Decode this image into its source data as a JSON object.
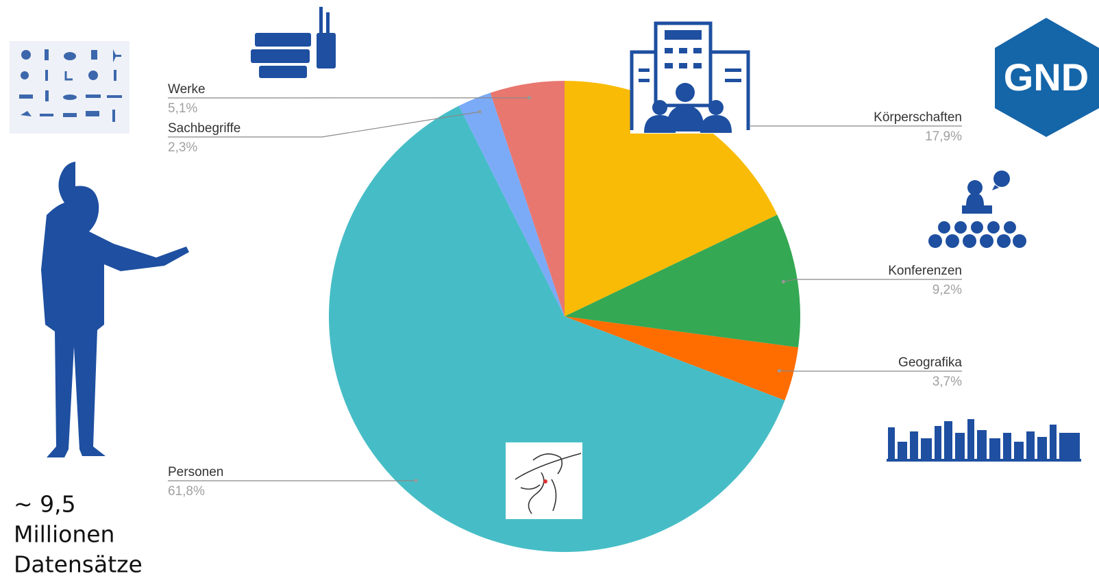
{
  "chart_data": {
    "type": "pie",
    "categories": [
      "Körperschaften",
      "Konferenzen",
      "Geografika",
      "Personen",
      "Sachbegriffe",
      "Werke"
    ],
    "values": [
      17.9,
      9.2,
      3.7,
      61.8,
      2.3,
      5.1
    ],
    "value_labels": [
      "17,9%",
      "9,2%",
      "3,7%",
      "61,8%",
      "2,3%",
      "5,1%"
    ],
    "colors": [
      "#f9bb06",
      "#34a853",
      "#ff6d00",
      "#46bdc6",
      "#7baaf7",
      "#e8776f"
    ],
    "annotation_lines": [
      "~ 9,5",
      "Millionen",
      "Datensätze"
    ],
    "logo": "GND"
  }
}
